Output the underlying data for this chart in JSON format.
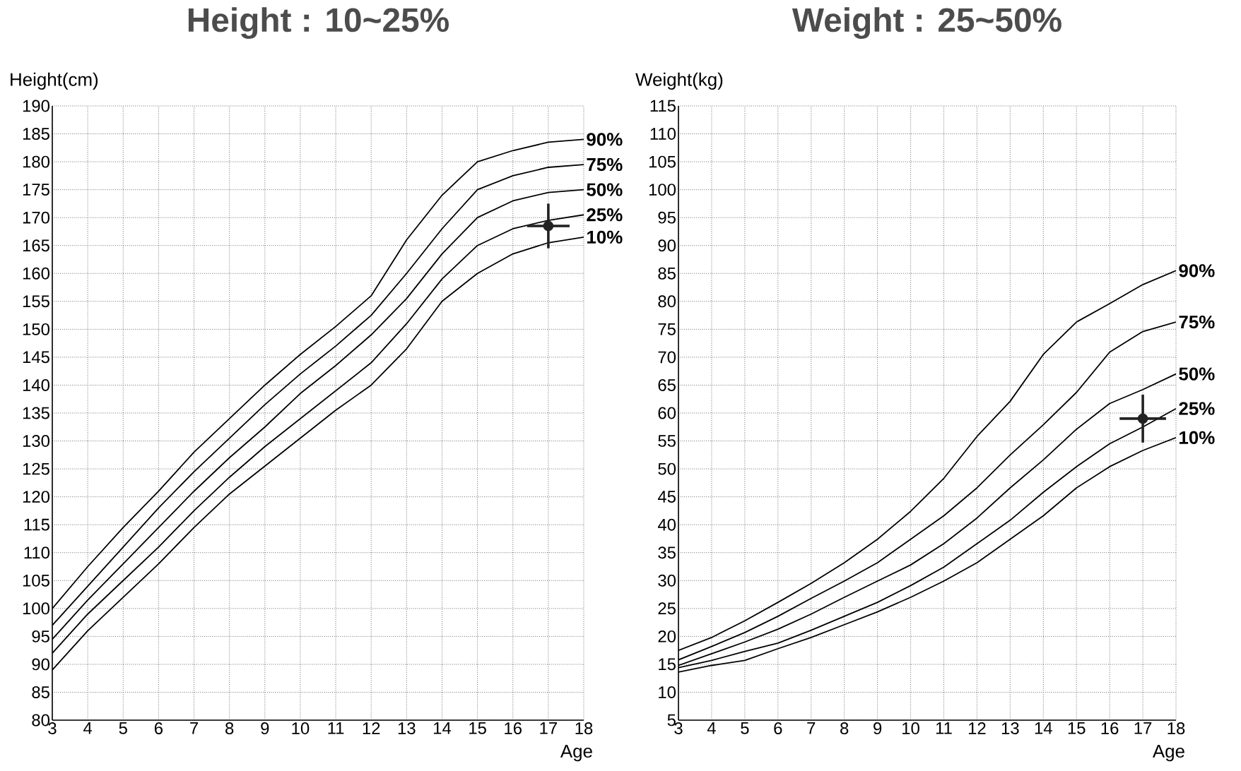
{
  "chart_data": [
    {
      "type": "line",
      "title": "Height : 10~25%",
      "ylabel": "Height(cm)",
      "xlabel": "Age",
      "x": [
        3,
        4,
        5,
        6,
        7,
        8,
        9,
        10,
        11,
        12,
        13,
        14,
        15,
        16,
        17,
        18
      ],
      "xlim": [
        3,
        18
      ],
      "xticks": [
        3,
        4,
        5,
        6,
        7,
        8,
        9,
        10,
        11,
        12,
        13,
        14,
        15,
        16,
        17,
        18
      ],
      "ylim": [
        80,
        190
      ],
      "yticks": [
        80,
        85,
        90,
        95,
        100,
        105,
        110,
        115,
        120,
        125,
        130,
        135,
        140,
        145,
        150,
        155,
        160,
        165,
        170,
        175,
        180,
        185,
        190
      ],
      "grid": true,
      "line_style": "solid",
      "series": [
        {
          "name": "90%",
          "color": "#000000",
          "values": [
            100,
            107.5,
            114.5,
            121,
            128,
            134,
            140,
            145.5,
            150.5,
            156,
            166,
            174,
            180,
            182,
            183.5,
            184
          ]
        },
        {
          "name": "75%",
          "color": "#000000",
          "values": [
            97,
            104,
            111,
            118,
            124.5,
            130.5,
            136.5,
            142,
            147,
            152.5,
            160,
            168,
            175,
            177.5,
            179,
            179.5
          ]
        },
        {
          "name": "50%",
          "color": "#000000",
          "values": [
            94.5,
            101.5,
            108,
            114.5,
            121,
            127,
            132.5,
            138.5,
            143.5,
            149,
            155.5,
            163.5,
            170,
            173,
            174.5,
            175
          ]
        },
        {
          "name": "25%",
          "color": "#000000",
          "values": [
            92,
            99,
            105,
            111,
            117.5,
            123.5,
            129,
            134,
            139,
            144,
            151,
            159,
            165,
            168,
            169.5,
            170.5
          ]
        },
        {
          "name": "10%",
          "color": "#000000",
          "values": [
            89,
            96,
            102,
            108,
            114.5,
            120.5,
            125.5,
            130.5,
            135.5,
            140,
            146.5,
            155,
            160,
            163.5,
            165.5,
            166.5
          ]
        },
        {
          "type": "scatter",
          "color": "#222222",
          "x": [
            17
          ],
          "values": [
            168.5
          ],
          "errors": [
            4
          ],
          "xerrors": [
            0.6
          ]
        }
      ]
    },
    {
      "type": "line",
      "title": "Weight : 25~50%",
      "ylabel": "Weight(kg)",
      "xlabel": "Age",
      "x": [
        3,
        4,
        5,
        6,
        7,
        8,
        9,
        10,
        11,
        12,
        13,
        14,
        15,
        16,
        17,
        18
      ],
      "xlim": [
        3,
        18
      ],
      "xticks": [
        3,
        4,
        5,
        6,
        7,
        8,
        9,
        10,
        11,
        12,
        13,
        14,
        15,
        16,
        17,
        18
      ],
      "ylim": [
        5,
        115
      ],
      "yticks": [
        5,
        10,
        15,
        20,
        25,
        30,
        35,
        40,
        45,
        50,
        55,
        60,
        65,
        70,
        75,
        80,
        85,
        90,
        95,
        100,
        105,
        110,
        115
      ],
      "grid": true,
      "line_style": "solid",
      "series": [
        {
          "name": "90%",
          "color": "#000000",
          "values": [
            17.5,
            19.8,
            22.8,
            26.1,
            29.5,
            33.2,
            37.4,
            42.4,
            48.3,
            55.8,
            62.1,
            70.5,
            76.3,
            79.6,
            83,
            85.5
          ]
        },
        {
          "name": "75%",
          "color": "#000000",
          "values": [
            15.8,
            18.2,
            20.7,
            23.6,
            26.8,
            29.9,
            33.2,
            37.4,
            41.6,
            46.6,
            52.5,
            57.9,
            63.7,
            70.9,
            74.6,
            76.3
          ]
        },
        {
          "name": "50%",
          "color": "#000000",
          "values": [
            14.8,
            16.9,
            19,
            21.3,
            24,
            27,
            29.9,
            32.8,
            36.6,
            41.2,
            46.6,
            51.6,
            57.1,
            61.7,
            64.2,
            67
          ]
        },
        {
          "name": "25%",
          "color": "#000000",
          "values": [
            14.4,
            15.7,
            17.3,
            18.8,
            21.1,
            23.6,
            26.1,
            29.1,
            32.4,
            36.6,
            40.8,
            45.8,
            50.4,
            54.5,
            57.5,
            60.8
          ]
        },
        {
          "name": "10%",
          "color": "#000000",
          "values": [
            13.6,
            14.8,
            15.7,
            17.8,
            19.8,
            22.1,
            24.4,
            27,
            29.9,
            33.2,
            37.4,
            41.6,
            46.6,
            50.4,
            53.3,
            55.6
          ]
        },
        {
          "type": "scatter",
          "color": "#222222",
          "x": [
            17
          ],
          "values": [
            59
          ],
          "errors": [
            4.3
          ],
          "xerrors": [
            0.7
          ]
        }
      ]
    }
  ]
}
